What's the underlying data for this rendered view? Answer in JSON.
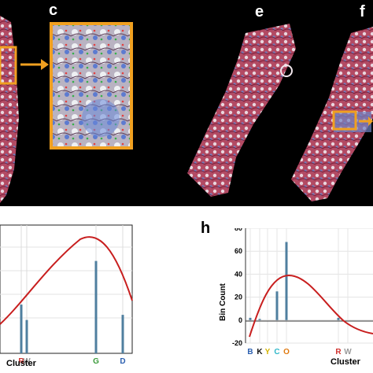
{
  "panel_labels": {
    "c": "c",
    "e": "e",
    "f": "f",
    "h": "h"
  },
  "colors": {
    "highlight_box": "#f0a020",
    "arrow": "#f0a020",
    "tissue_red": "#8e2f48",
    "tissue_blue": "#6f84c6",
    "curve": "#c81e1e",
    "bar": "#4f7f9f"
  },
  "chart_data": [
    {
      "type": "bar",
      "panel": "left (unlabeled, cropped)",
      "xlabel": "Cluster",
      "ylabel": "",
      "ticks": [
        {
          "label": "R",
          "color": "#d0312d"
        },
        {
          "label": "W",
          "color": "#9a9a9a"
        },
        {
          "label": "G",
          "color": "#3a9a3a"
        },
        {
          "label": "D",
          "color": "#2b5fb0"
        }
      ],
      "overlay_curve": "fitted distribution (red)",
      "bars_relative_height": [
        0.38,
        0.26,
        0.72,
        0.3
      ]
    },
    {
      "type": "bar",
      "panel": "h",
      "xlabel": "Cluster",
      "ylabel": "Bin Count",
      "ylim": [
        -20,
        80
      ],
      "yticks": [
        "-20",
        "0",
        "20",
        "40",
        "60",
        "80"
      ],
      "ticks": [
        {
          "label": "B",
          "color": "#2b5fb0"
        },
        {
          "label": "K",
          "color": "#111111"
        },
        {
          "label": "Y",
          "color": "#d4b300"
        },
        {
          "label": "C",
          "color": "#2fb7c9"
        },
        {
          "label": "O",
          "color": "#e07a10"
        },
        {
          "label": "R",
          "color": "#d0312d"
        },
        {
          "label": "W",
          "color": "#9a9a9a"
        }
      ],
      "series": [
        {
          "values": [
            2,
            1,
            0,
            25,
            68,
            2,
            0
          ]
        }
      ],
      "overlay_curve": "fitted distribution (red), peak about 40"
    }
  ]
}
